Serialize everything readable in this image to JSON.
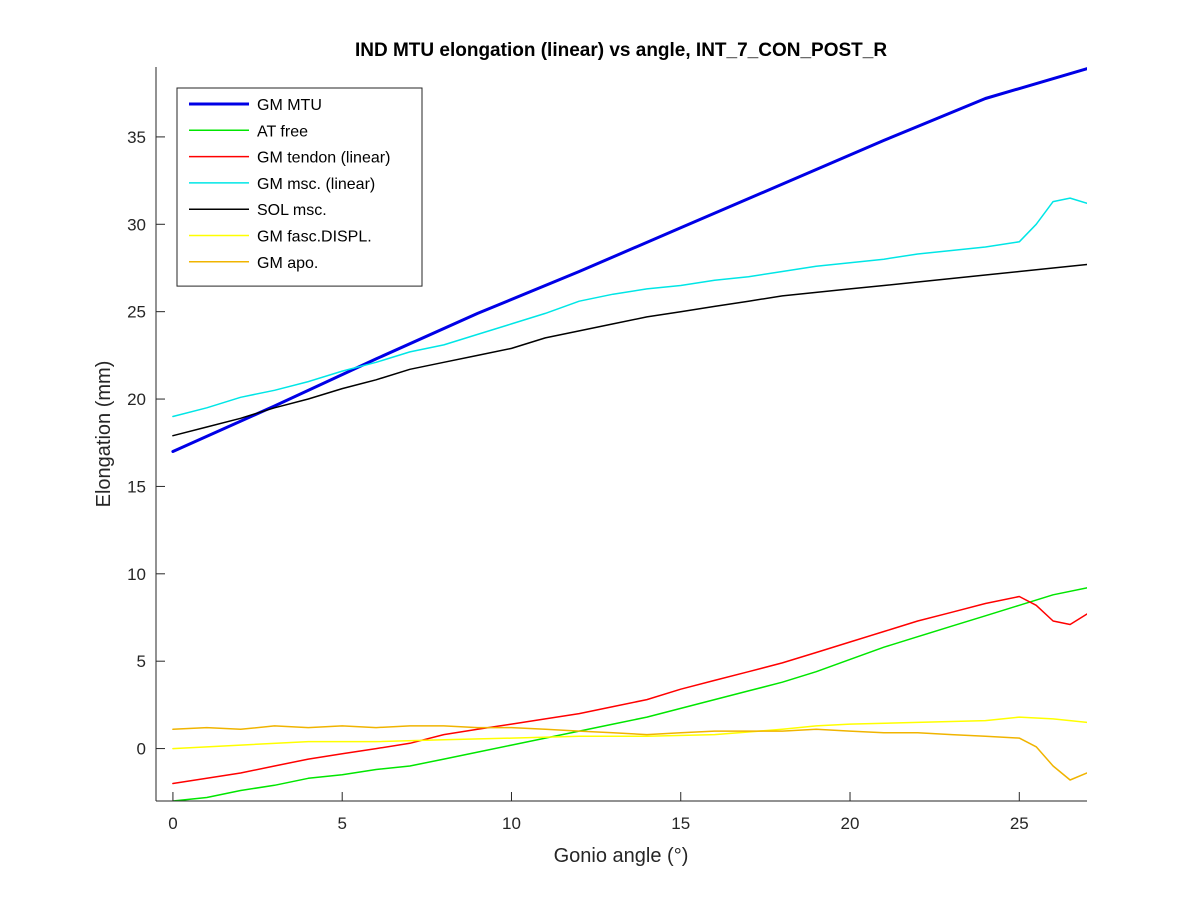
{
  "chart_data": {
    "type": "line",
    "title": "IND MTU elongation (linear) vs angle, INT_7_CON_POST_R",
    "xlabel": "Gonio angle (°)",
    "ylabel": "Elongation (mm)",
    "xlim": [
      -0.5,
      27
    ],
    "ylim": [
      -3,
      39
    ],
    "xticks": [
      0,
      5,
      10,
      15,
      20,
      25
    ],
    "yticks": [
      0,
      5,
      10,
      15,
      20,
      25,
      30,
      35
    ],
    "legend_position": "top-left",
    "grid": false,
    "series": [
      {
        "name": "GM MTU",
        "color": "#0000e6",
        "width": 3,
        "x": [
          0,
          3,
          6,
          9,
          12,
          15,
          18,
          21,
          24,
          27
        ],
        "y": [
          17.0,
          19.6,
          22.3,
          24.9,
          27.3,
          29.8,
          32.3,
          34.8,
          37.2,
          38.9
        ]
      },
      {
        "name": "AT free",
        "color": "#00e600",
        "width": 1.5,
        "x": [
          0,
          1,
          2,
          3,
          4,
          5,
          6,
          7,
          8,
          9,
          10,
          11,
          12,
          13,
          14,
          15,
          16,
          17,
          18,
          19,
          20,
          21,
          22,
          23,
          24,
          25,
          26,
          27
        ],
        "y": [
          -3.0,
          -2.8,
          -2.4,
          -2.1,
          -1.7,
          -1.5,
          -1.2,
          -1.0,
          -0.6,
          -0.2,
          0.2,
          0.6,
          1.0,
          1.4,
          1.8,
          2.3,
          2.8,
          3.3,
          3.8,
          4.4,
          5.1,
          5.8,
          6.4,
          7.0,
          7.6,
          8.2,
          8.8,
          9.2
        ]
      },
      {
        "name": "GM tendon (linear)",
        "color": "#ff0000",
        "width": 1.5,
        "x": [
          0,
          1,
          2,
          3,
          4,
          5,
          6,
          7,
          8,
          9,
          10,
          11,
          12,
          13,
          14,
          15,
          16,
          17,
          18,
          19,
          20,
          21,
          22,
          23,
          24,
          25,
          25.5,
          26,
          26.5,
          27
        ],
        "y": [
          -2.0,
          -1.7,
          -1.4,
          -1.0,
          -0.6,
          -0.3,
          0.0,
          0.3,
          0.8,
          1.1,
          1.4,
          1.7,
          2.0,
          2.4,
          2.8,
          3.4,
          3.9,
          4.4,
          4.9,
          5.5,
          6.1,
          6.7,
          7.3,
          7.8,
          8.3,
          8.7,
          8.2,
          7.3,
          7.1,
          7.7
        ]
      },
      {
        "name": "GM msc. (linear)",
        "color": "#00e6e6",
        "width": 1.5,
        "x": [
          0,
          1,
          2,
          3,
          4,
          5,
          6,
          7,
          8,
          9,
          10,
          11,
          12,
          13,
          14,
          15,
          16,
          17,
          18,
          19,
          20,
          21,
          22,
          23,
          24,
          25,
          25.5,
          26,
          26.5,
          27
        ],
        "y": [
          19.0,
          19.5,
          20.1,
          20.5,
          21.0,
          21.6,
          22.1,
          22.7,
          23.1,
          23.7,
          24.3,
          24.9,
          25.6,
          26.0,
          26.3,
          26.5,
          26.8,
          27.0,
          27.3,
          27.6,
          27.8,
          28.0,
          28.3,
          28.5,
          28.7,
          29.0,
          30.0,
          31.3,
          31.5,
          31.2
        ]
      },
      {
        "name": "SOL msc.",
        "color": "#000000",
        "width": 1.5,
        "x": [
          0,
          1,
          2,
          3,
          4,
          5,
          6,
          7,
          8,
          9,
          10,
          11,
          12,
          13,
          14,
          15,
          16,
          17,
          18,
          19,
          20,
          21,
          22,
          23,
          24,
          25,
          26,
          27
        ],
        "y": [
          17.9,
          18.4,
          18.9,
          19.5,
          20.0,
          20.6,
          21.1,
          21.7,
          22.1,
          22.5,
          22.9,
          23.5,
          23.9,
          24.3,
          24.7,
          25.0,
          25.3,
          25.6,
          25.9,
          26.1,
          26.3,
          26.5,
          26.7,
          26.9,
          27.1,
          27.3,
          27.5,
          27.7
        ]
      },
      {
        "name": "GM fasc.DISPL.",
        "color": "#ffff00",
        "width": 1.5,
        "x": [
          0,
          2,
          4,
          6,
          8,
          10,
          12,
          14,
          16,
          18,
          19,
          20,
          22,
          24,
          25,
          26,
          27
        ],
        "y": [
          0.0,
          0.2,
          0.4,
          0.4,
          0.5,
          0.6,
          0.7,
          0.7,
          0.8,
          1.1,
          1.3,
          1.4,
          1.5,
          1.6,
          1.8,
          1.7,
          1.5
        ]
      },
      {
        "name": "GM apo.",
        "color": "#f0b400",
        "width": 1.5,
        "x": [
          0,
          1,
          2,
          3,
          4,
          5,
          6,
          7,
          8,
          9,
          10,
          11,
          12,
          13,
          14,
          15,
          16,
          17,
          18,
          19,
          20,
          21,
          22,
          23,
          24,
          25,
          25.5,
          26,
          26.5,
          27
        ],
        "y": [
          1.1,
          1.2,
          1.1,
          1.3,
          1.2,
          1.3,
          1.2,
          1.3,
          1.3,
          1.2,
          1.2,
          1.1,
          1.0,
          0.9,
          0.8,
          0.9,
          1.0,
          1.0,
          1.0,
          1.1,
          1.0,
          0.9,
          0.9,
          0.8,
          0.7,
          0.6,
          0.1,
          -1.0,
          -1.8,
          -1.4
        ]
      }
    ]
  }
}
